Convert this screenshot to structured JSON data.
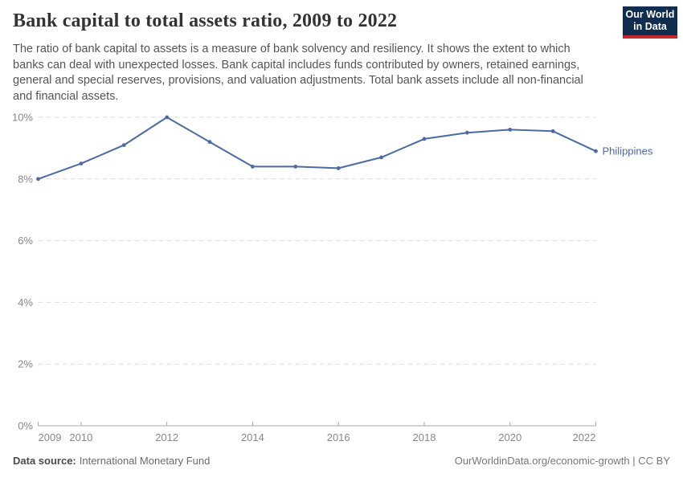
{
  "header": {
    "title": "Bank capital to total assets ratio, 2009 to 2022",
    "subtitle": "The ratio of bank capital to assets is a measure of bank solvency and resiliency. It shows the extent to which banks can deal with unexpected losses. Bank capital includes funds contributed by owners, retained earnings, general and special reserves, provisions, and valuation adjustments. Total bank assets include all non-financial and financial assets.",
    "logo": {
      "line1": "Our World",
      "line2": "in Data",
      "bg_color": "#102d50",
      "accent_color": "#c5292b"
    }
  },
  "footer": {
    "source_label": "Data source:",
    "source_value": "International Monetary Fund",
    "attribution": "OurWorldinData.org/economic-growth | CC BY"
  },
  "chart_data": {
    "type": "line",
    "title": "Bank capital to total assets ratio, 2009 to 2022",
    "x": [
      2009,
      2010,
      2011,
      2012,
      2013,
      2014,
      2015,
      2016,
      2017,
      2018,
      2019,
      2020,
      2021,
      2022
    ],
    "series": [
      {
        "name": "Philippines",
        "color": "#4c6aa5",
        "values": [
          8.0,
          8.5,
          9.1,
          10.0,
          9.2,
          8.4,
          8.4,
          8.35,
          8.7,
          9.3,
          9.5,
          9.6,
          9.55,
          8.9
        ]
      }
    ],
    "ylim": [
      0,
      10
    ],
    "xlabel": "",
    "ylabel": "",
    "unit": "%",
    "grid": "horizontal-dashed",
    "legend_position": "end-of-line-label",
    "yticks": [
      {
        "value": 0,
        "label": "0%"
      },
      {
        "value": 2,
        "label": "2%"
      },
      {
        "value": 4,
        "label": "4%"
      },
      {
        "value": 6,
        "label": "6%"
      },
      {
        "value": 8,
        "label": "8%"
      },
      {
        "value": 10,
        "label": "10%"
      }
    ],
    "xticks": [
      {
        "year": 2009,
        "label": "2009",
        "align": "start"
      },
      {
        "year": 2010,
        "label": "2010",
        "align": "middle"
      },
      {
        "year": 2012,
        "label": "2012",
        "align": "middle"
      },
      {
        "year": 2014,
        "label": "2014",
        "align": "middle"
      },
      {
        "year": 2016,
        "label": "2016",
        "align": "middle"
      },
      {
        "year": 2018,
        "label": "2018",
        "align": "middle"
      },
      {
        "year": 2020,
        "label": "2020",
        "align": "middle"
      },
      {
        "year": 2022,
        "label": "2022",
        "align": "end"
      }
    ]
  }
}
